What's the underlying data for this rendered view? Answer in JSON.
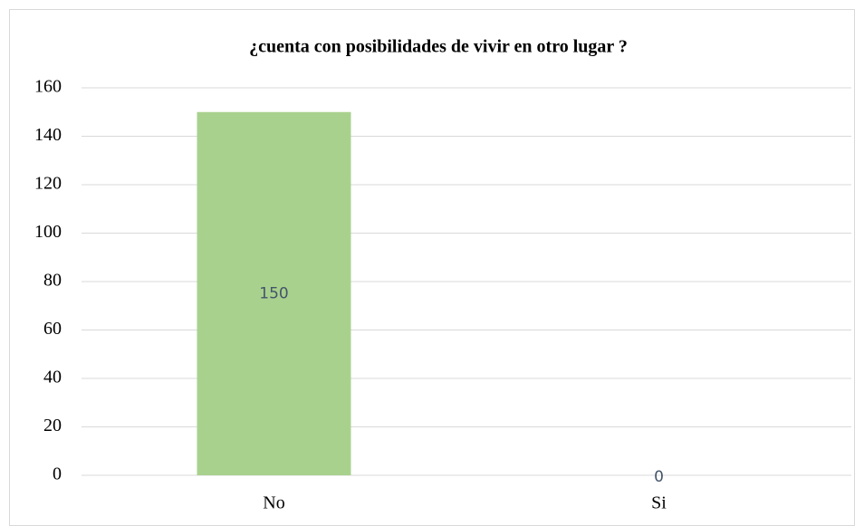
{
  "chart_data": {
    "type": "bar",
    "title": "¿cuenta con posibilidades de vivir en otro lugar ?",
    "categories": [
      "No",
      "Si"
    ],
    "values": [
      150,
      0
    ],
    "color": "#a9d18e",
    "ylim": [
      0,
      160
    ],
    "yticks": [
      0,
      20,
      40,
      60,
      80,
      100,
      120,
      140,
      160
    ],
    "grid": true
  }
}
